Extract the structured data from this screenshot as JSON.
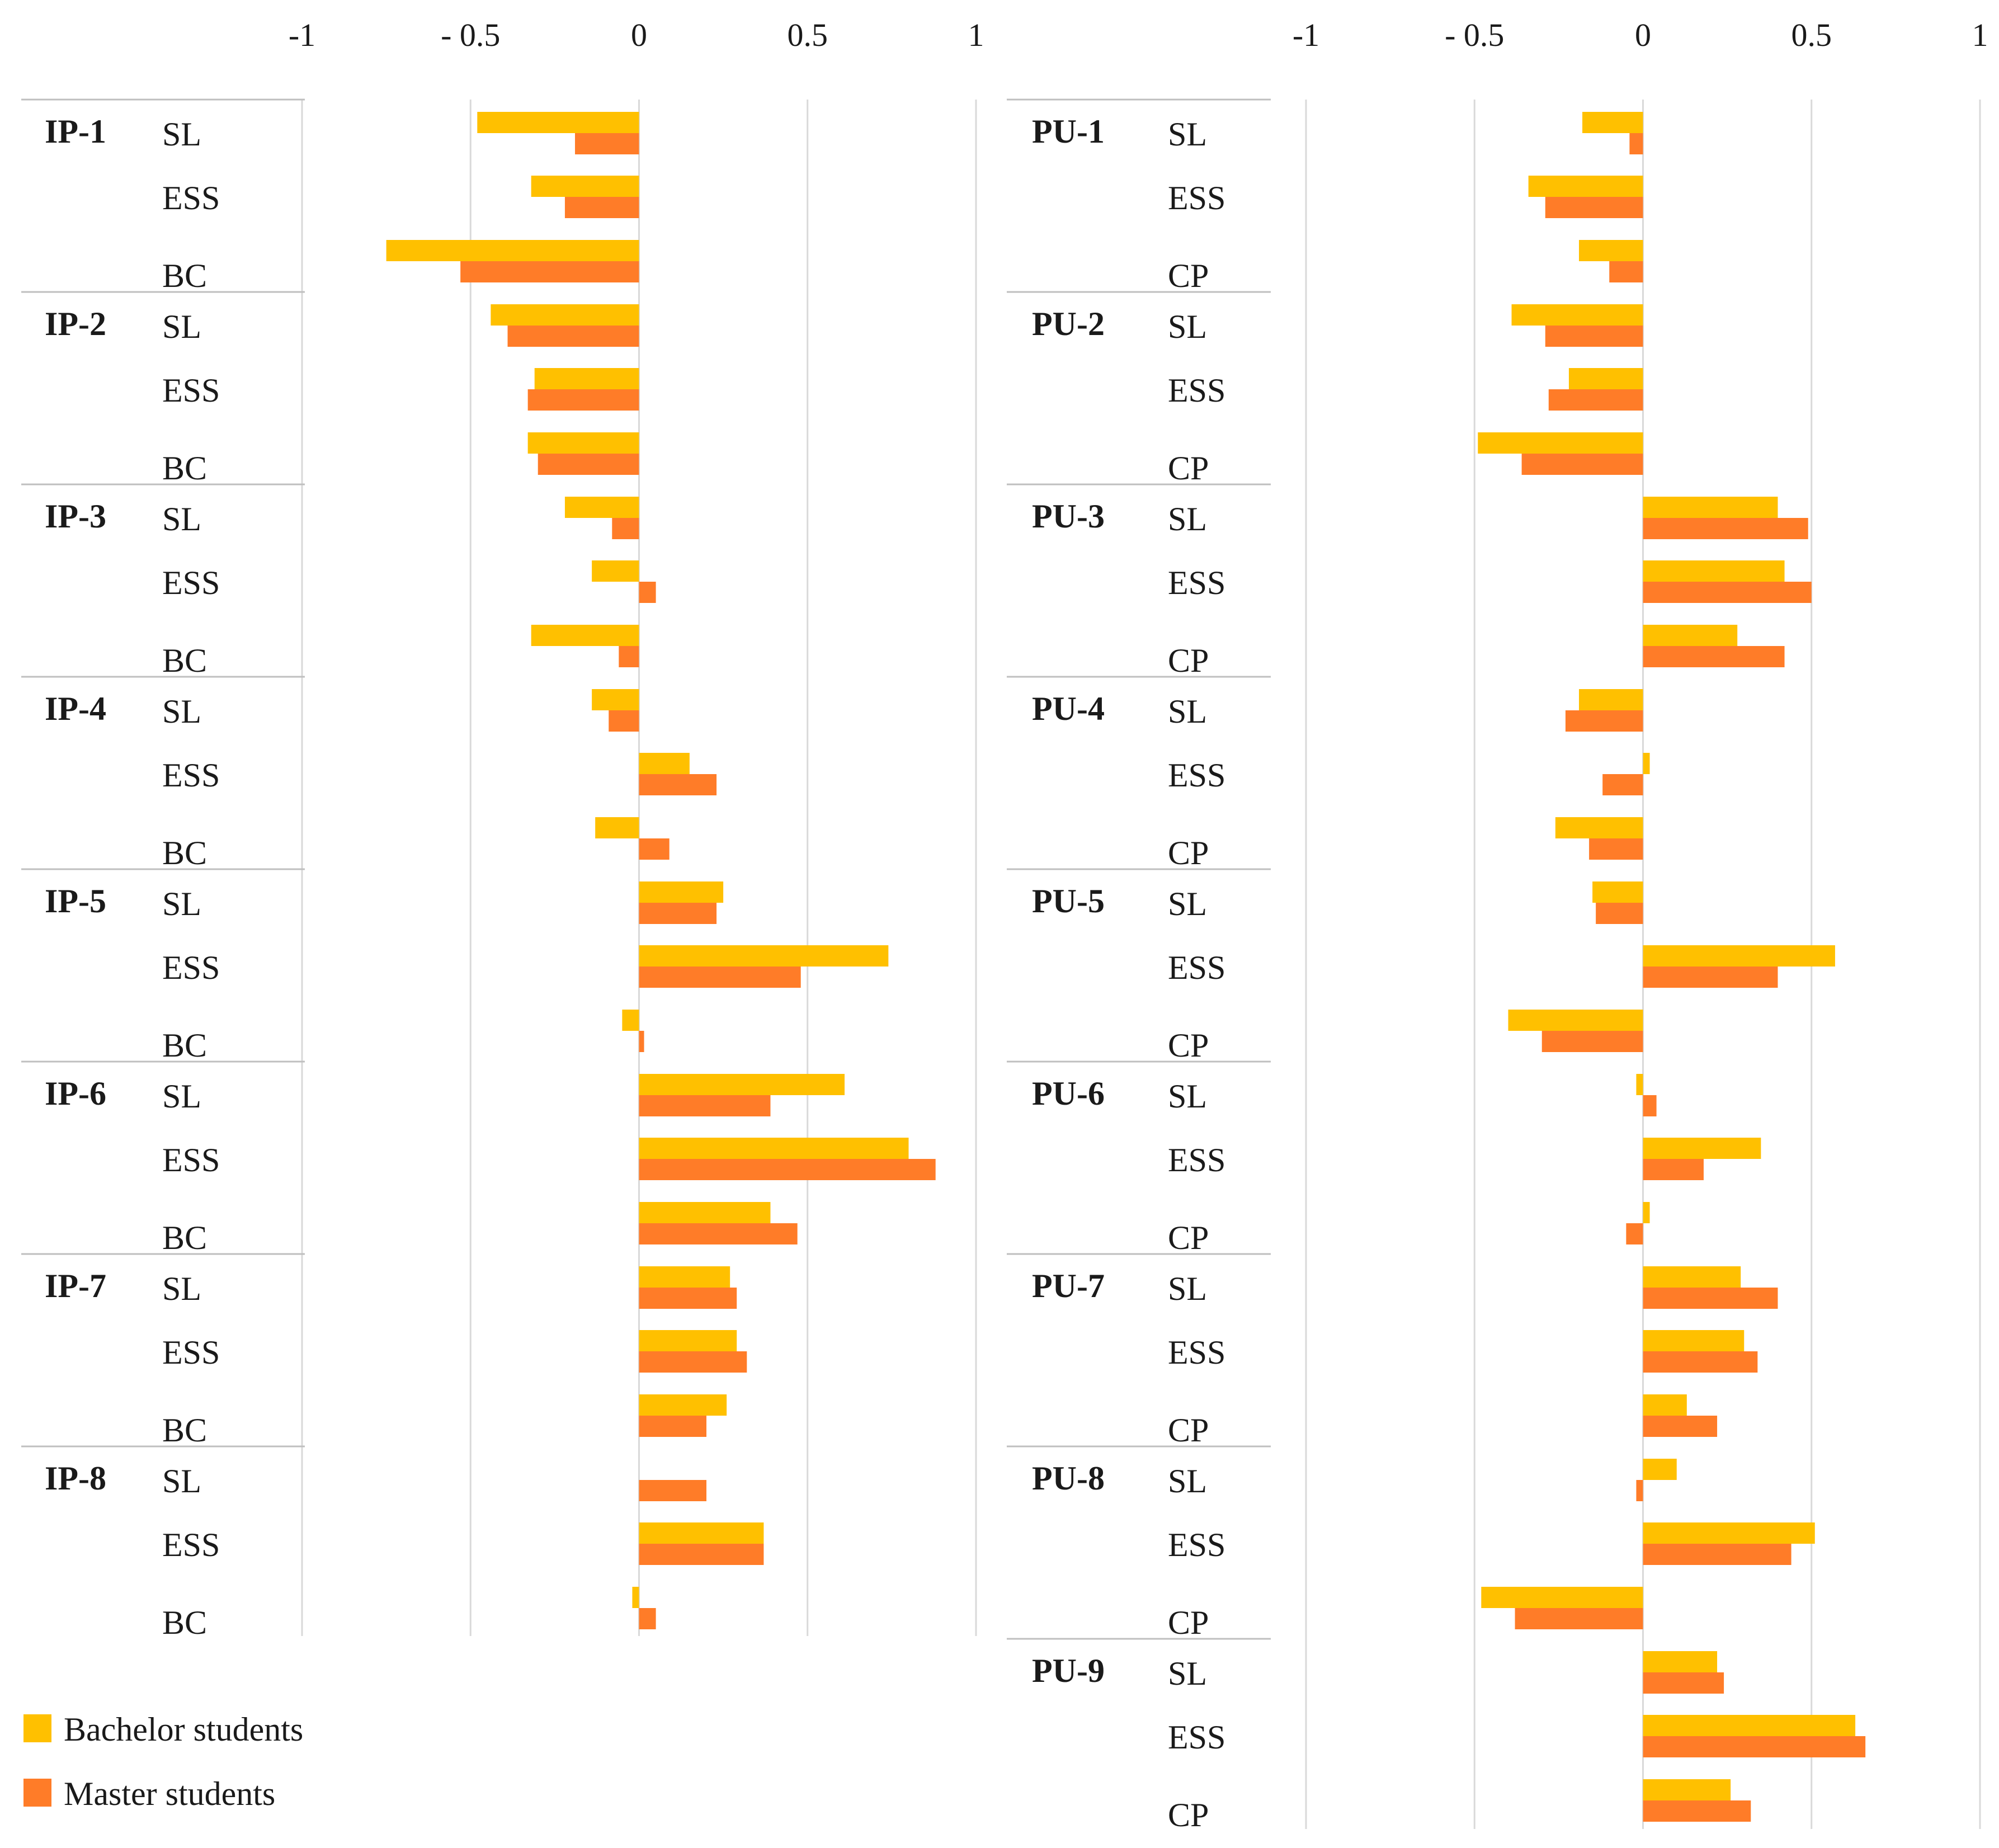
{
  "colors": {
    "bachelor": "#FFC000",
    "master": "#FF7C28",
    "grid": "#D9D9D9",
    "divider": "#BFBFBF"
  },
  "legend": [
    {
      "label": "Bachelor students",
      "color": "#FFC000"
    },
    {
      "label": "Master students",
      "color": "#FF7C28"
    }
  ],
  "chart_data": [
    {
      "type": "bar",
      "orientation": "horizontal",
      "xlim": [
        -1,
        1
      ],
      "ticks": [
        -1,
        -0.5,
        0,
        0.5,
        1
      ],
      "tick_labels": [
        "-1",
        "- 0.5",
        "0",
        "0.5",
        "1"
      ],
      "series": [
        "Bachelor students",
        "Master students"
      ],
      "groups": [
        {
          "name": "IP-1",
          "items": [
            {
              "label": "SL",
              "values": [
                -0.48,
                -0.19
              ]
            },
            {
              "label": "ESS",
              "values": [
                -0.32,
                -0.22
              ]
            },
            {
              "label": "BC",
              "values": [
                -0.75,
                -0.53
              ]
            }
          ]
        },
        {
          "name": "IP-2",
          "items": [
            {
              "label": "SL",
              "values": [
                -0.44,
                -0.39
              ]
            },
            {
              "label": "ESS",
              "values": [
                -0.31,
                -0.33
              ]
            },
            {
              "label": "BC",
              "values": [
                -0.33,
                -0.3
              ]
            }
          ]
        },
        {
          "name": "IP-3",
          "items": [
            {
              "label": "SL",
              "values": [
                -0.22,
                -0.08
              ]
            },
            {
              "label": "ESS",
              "values": [
                -0.14,
                0.05
              ]
            },
            {
              "label": "BC",
              "values": [
                -0.32,
                -0.06
              ]
            }
          ]
        },
        {
          "name": "IP-4",
          "items": [
            {
              "label": "SL",
              "values": [
                -0.14,
                -0.09
              ]
            },
            {
              "label": "ESS",
              "values": [
                0.15,
                0.23
              ]
            },
            {
              "label": "BC",
              "values": [
                -0.13,
                0.09
              ]
            }
          ]
        },
        {
          "name": "IP-5",
          "items": [
            {
              "label": "SL",
              "values": [
                0.25,
                0.23
              ]
            },
            {
              "label": "ESS",
              "values": [
                0.74,
                0.48
              ]
            },
            {
              "label": "BC",
              "values": [
                -0.05,
                0.015
              ]
            }
          ]
        },
        {
          "name": "IP-6",
          "items": [
            {
              "label": "SL",
              "values": [
                0.61,
                0.39
              ]
            },
            {
              "label": "ESS",
              "values": [
                0.8,
                0.88
              ]
            },
            {
              "label": "BC",
              "values": [
                0.39,
                0.47
              ]
            }
          ]
        },
        {
          "name": "IP-7",
          "items": [
            {
              "label": "SL",
              "values": [
                0.27,
                0.29
              ]
            },
            {
              "label": "ESS",
              "values": [
                0.29,
                0.32
              ]
            },
            {
              "label": "BC",
              "values": [
                0.26,
                0.2
              ]
            }
          ]
        },
        {
          "name": "IP-8",
          "items": [
            {
              "label": "SL",
              "values": [
                0,
                0.2
              ]
            },
            {
              "label": "ESS",
              "values": [
                0.37,
                0.37
              ]
            },
            {
              "label": "BC",
              "values": [
                -0.02,
                0.05
              ]
            }
          ]
        }
      ]
    },
    {
      "type": "bar",
      "orientation": "horizontal",
      "xlim": [
        -1,
        1
      ],
      "ticks": [
        -1,
        -0.5,
        0,
        0.5,
        1
      ],
      "tick_labels": [
        "-1",
        "- 0.5",
        "0",
        "0.5",
        "1"
      ],
      "series": [
        "Bachelor students",
        "Master students"
      ],
      "groups": [
        {
          "name": "PU-1",
          "items": [
            {
              "label": "SL",
              "values": [
                -0.18,
                -0.04
              ]
            },
            {
              "label": "ESS",
              "values": [
                -0.34,
                -0.29
              ]
            },
            {
              "label": "CP",
              "values": [
                -0.19,
                -0.1
              ]
            }
          ]
        },
        {
          "name": "PU-2",
          "items": [
            {
              "label": "SL",
              "values": [
                -0.39,
                -0.29
              ]
            },
            {
              "label": "ESS",
              "values": [
                -0.22,
                -0.28
              ]
            },
            {
              "label": "CP",
              "values": [
                -0.49,
                -0.36
              ]
            }
          ]
        },
        {
          "name": "PU-3",
          "items": [
            {
              "label": "SL",
              "values": [
                0.4,
                0.49
              ]
            },
            {
              "label": "ESS",
              "values": [
                0.42,
                0.5
              ]
            },
            {
              "label": "CP",
              "values": [
                0.28,
                0.42
              ]
            }
          ]
        },
        {
          "name": "PU-4",
          "items": [
            {
              "label": "SL",
              "values": [
                -0.19,
                -0.23
              ]
            },
            {
              "label": "ESS",
              "values": [
                0.02,
                -0.12
              ]
            },
            {
              "label": "CP",
              "values": [
                -0.26,
                -0.16
              ]
            }
          ]
        },
        {
          "name": "PU-5",
          "items": [
            {
              "label": "SL",
              "values": [
                -0.15,
                -0.14
              ]
            },
            {
              "label": "ESS",
              "values": [
                0.57,
                0.4
              ]
            },
            {
              "label": "CP",
              "values": [
                -0.4,
                -0.3
              ]
            }
          ]
        },
        {
          "name": "PU-6",
          "items": [
            {
              "label": "SL",
              "values": [
                -0.02,
                0.04
              ]
            },
            {
              "label": "ESS",
              "values": [
                0.35,
                0.18
              ]
            },
            {
              "label": "CP",
              "values": [
                0.02,
                -0.05
              ]
            }
          ]
        },
        {
          "name": "PU-7",
          "items": [
            {
              "label": "SL",
              "values": [
                0.29,
                0.4
              ]
            },
            {
              "label": "ESS",
              "values": [
                0.3,
                0.34
              ]
            },
            {
              "label": "CP",
              "values": [
                0.13,
                0.22
              ]
            }
          ]
        },
        {
          "name": "PU-8",
          "items": [
            {
              "label": "SL",
              "values": [
                0.1,
                -0.02
              ]
            },
            {
              "label": "ESS",
              "values": [
                0.51,
                0.44
              ]
            },
            {
              "label": "CP",
              "values": [
                -0.48,
                -0.38
              ]
            }
          ]
        },
        {
          "name": "PU-9",
          "items": [
            {
              "label": "SL",
              "values": [
                0.22,
                0.24
              ]
            },
            {
              "label": "ESS",
              "values": [
                0.63,
                0.66
              ]
            },
            {
              "label": "CP",
              "values": [
                0.26,
                0.32
              ]
            }
          ]
        }
      ]
    }
  ]
}
